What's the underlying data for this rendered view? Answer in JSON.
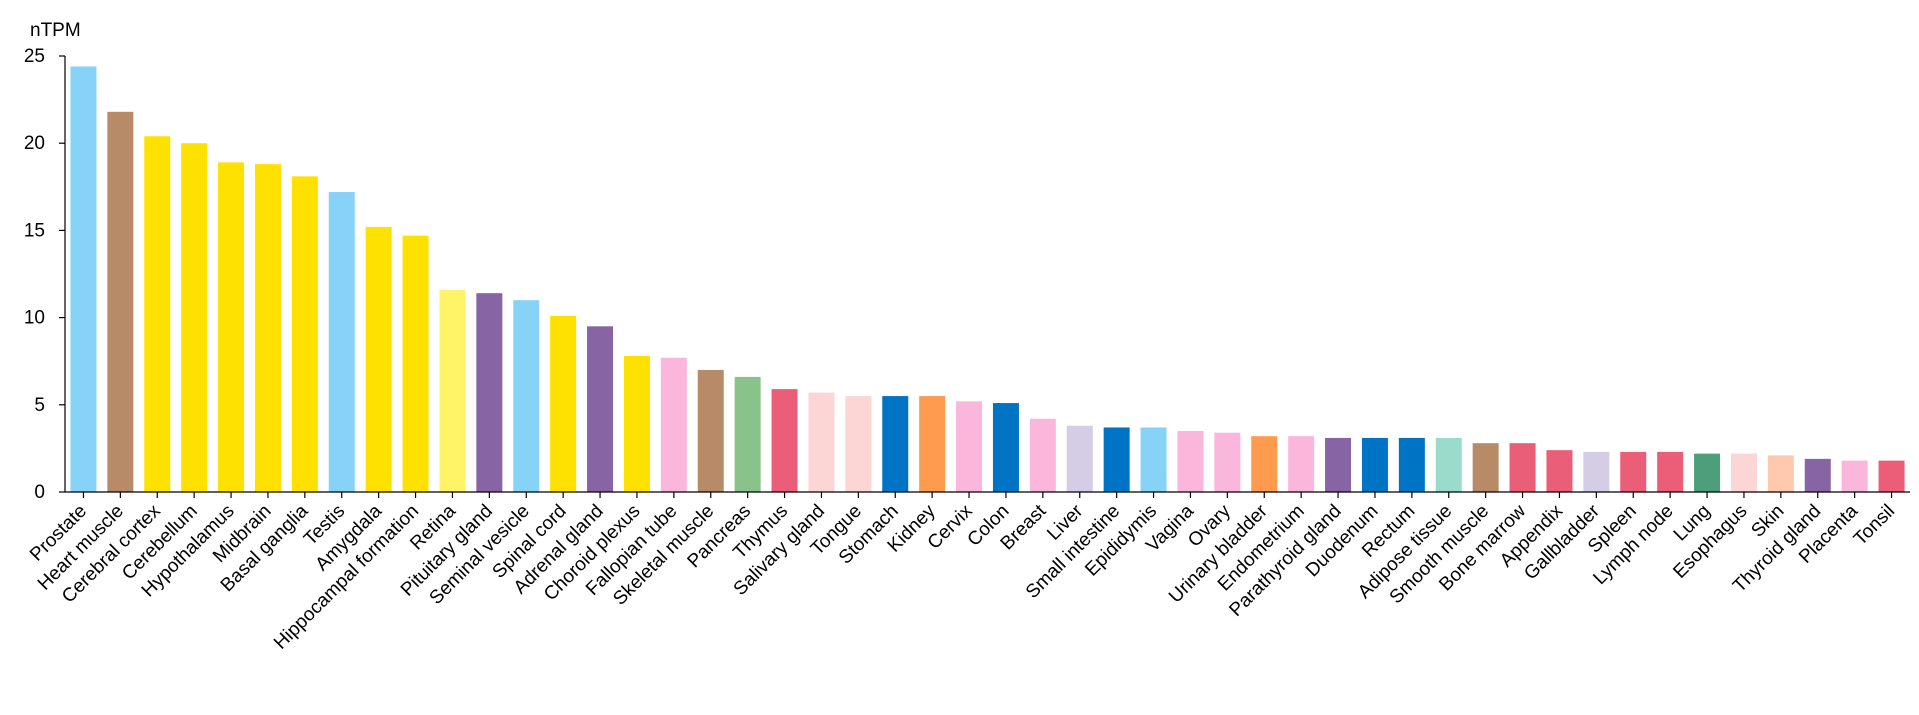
{
  "chart_data": {
    "type": "bar",
    "ylabel": "nTPM",
    "xlabel": "",
    "ylim": [
      0,
      25
    ],
    "yticks": [
      0,
      5,
      10,
      15,
      20,
      25
    ],
    "grid": false,
    "categories": [
      "Prostate",
      "Heart muscle",
      "Cerebral cortex",
      "Cerebellum",
      "Hypothalamus",
      "Midbrain",
      "Basal ganglia",
      "Testis",
      "Amygdala",
      "Hippocampal formation",
      "Retina",
      "Pituitary gland",
      "Seminal vesicle",
      "Spinal cord",
      "Adrenal gland",
      "Choroid plexus",
      "Fallopian tube",
      "Skeletal muscle",
      "Pancreas",
      "Thymus",
      "Salivary gland",
      "Tongue",
      "Stomach",
      "Kidney",
      "Cervix",
      "Colon",
      "Breast",
      "Liver",
      "Small intestine",
      "Epididymis",
      "Vagina",
      "Ovary",
      "Urinary bladder",
      "Endometrium",
      "Parathyroid gland",
      "Duodenum",
      "Rectum",
      "Adipose tissue",
      "Smooth muscle",
      "Bone marrow",
      "Appendix",
      "Gallbladder",
      "Spleen",
      "Lymph node",
      "Lung",
      "Esophagus",
      "Skin",
      "Thyroid gland",
      "Placenta",
      "Tonsil"
    ],
    "values": [
      24.4,
      21.8,
      20.4,
      20.0,
      18.9,
      18.8,
      18.1,
      17.2,
      15.2,
      14.7,
      11.6,
      11.4,
      11.0,
      10.1,
      9.5,
      7.8,
      7.7,
      7.0,
      6.6,
      5.9,
      5.7,
      5.5,
      5.5,
      5.5,
      5.2,
      5.1,
      4.2,
      3.8,
      3.7,
      3.7,
      3.5,
      3.4,
      3.2,
      3.2,
      3.1,
      3.1,
      3.1,
      3.1,
      2.8,
      2.8,
      2.4,
      2.3,
      2.3,
      2.3,
      2.2,
      2.2,
      2.1,
      1.9,
      1.8,
      1.8
    ],
    "colors": [
      "#87d3f8",
      "#b78b68",
      "#ffe100",
      "#ffe100",
      "#ffe100",
      "#ffe100",
      "#ffe100",
      "#87d3f8",
      "#ffe100",
      "#ffe100",
      "#fff467",
      "#8764a3",
      "#87d3f8",
      "#ffe100",
      "#8764a3",
      "#ffe100",
      "#fbb7db",
      "#b78b68",
      "#8ac28b",
      "#ea5f77",
      "#fcd6d5",
      "#fcd6d5",
      "#0074c4",
      "#ff9b4e",
      "#fbb7db",
      "#0074c4",
      "#fbb7db",
      "#d5cce6",
      "#0074c4",
      "#87d3f8",
      "#fbb7db",
      "#fbb7db",
      "#ff9b4e",
      "#fbb7db",
      "#8764a3",
      "#0074c4",
      "#0074c4",
      "#9adccc",
      "#b78b68",
      "#ea5f77",
      "#ea5f77",
      "#d5cce6",
      "#ea5f77",
      "#ea5f77",
      "#4c9f7a",
      "#fcd6d5",
      "#ffc9ae",
      "#8764a3",
      "#fbb7db",
      "#ea5f77"
    ]
  }
}
